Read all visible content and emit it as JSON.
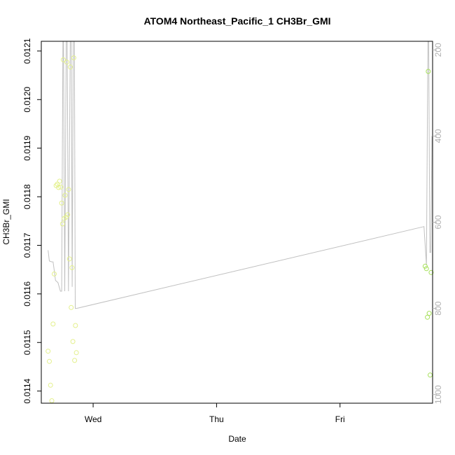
{
  "chart_data": {
    "type": "scatter",
    "title": "ATOM4 Northeast_Pacific_1 CH3Br_GMI",
    "xlabel": "Date",
    "ylabel": "CH3Br_GMI",
    "x_ticks": [
      {
        "day": 1.0,
        "label": "Wed"
      },
      {
        "day": 2.0,
        "label": "Thu"
      },
      {
        "day": 3.0,
        "label": "Fri"
      }
    ],
    "xlim_days": [
      0.58,
      3.75
    ],
    "ylim": [
      0.011375,
      0.01212
    ],
    "y_ticks": [
      0.0114,
      0.0115,
      0.0116,
      0.0117,
      0.0118,
      0.0119,
      0.012,
      0.0121
    ],
    "y2_axis": {
      "label": "",
      "ticks": [
        200,
        400,
        600,
        800,
        1000
      ],
      "range": [
        1020,
        180
      ],
      "color": "#b0b0b0"
    },
    "colors": {
      "point_yellow": "#e3f08c",
      "point_green": "#a6e05a",
      "pressure_line": "#c0c0c0",
      "axis": "#000000"
    },
    "series": [
      {
        "marker": "open-circle",
        "color_key": "point_yellow",
        "points": [
          {
            "day": 0.635,
            "y": 0.011482
          },
          {
            "day": 0.645,
            "y": 0.011461
          },
          {
            "day": 0.655,
            "y": 0.011412
          },
          {
            "day": 0.665,
            "y": 0.01138
          },
          {
            "day": 0.675,
            "y": 0.011538
          },
          {
            "day": 0.685,
            "y": 0.011641
          },
          {
            "day": 0.7,
            "y": 0.011823
          },
          {
            "day": 0.71,
            "y": 0.011826
          },
          {
            "day": 0.72,
            "y": 0.011819
          },
          {
            "day": 0.728,
            "y": 0.011832
          },
          {
            "day": 0.738,
            "y": 0.01182
          },
          {
            "day": 0.745,
            "y": 0.011787
          },
          {
            "day": 0.752,
            "y": 0.011744
          },
          {
            "day": 0.758,
            "y": 0.012082
          },
          {
            "day": 0.765,
            "y": 0.011755
          },
          {
            "day": 0.772,
            "y": 0.011803
          },
          {
            "day": 0.78,
            "y": 0.011758
          },
          {
            "day": 0.787,
            "y": 0.012077
          },
          {
            "day": 0.794,
            "y": 0.011763
          },
          {
            "day": 0.801,
            "y": 0.011815
          },
          {
            "day": 0.808,
            "y": 0.011672
          },
          {
            "day": 0.815,
            "y": 0.012067
          },
          {
            "day": 0.822,
            "y": 0.011572
          },
          {
            "day": 0.829,
            "y": 0.011654
          },
          {
            "day": 0.836,
            "y": 0.011502
          },
          {
            "day": 0.843,
            "y": 0.012086
          },
          {
            "day": 0.85,
            "y": 0.011463
          },
          {
            "day": 0.857,
            "y": 0.011535
          },
          {
            "day": 0.864,
            "y": 0.011479
          }
        ]
      },
      {
        "marker": "open-circle",
        "color_key": "point_green",
        "points": [
          {
            "day": 3.69,
            "y": 0.011657
          },
          {
            "day": 3.7,
            "y": 0.011652
          },
          {
            "day": 3.708,
            "y": 0.011552
          },
          {
            "day": 3.715,
            "y": 0.012058
          },
          {
            "day": 3.722,
            "y": 0.01156
          },
          {
            "day": 3.73,
            "y": 0.011433
          },
          {
            "day": 3.738,
            "y": 0.011644
          }
        ]
      }
    ],
    "pressure_line": {
      "axis": "y2",
      "color_key": "pressure_line",
      "points": [
        {
          "day": 0.635,
          "y2": 665
        },
        {
          "day": 0.645,
          "y2": 690
        },
        {
          "day": 0.665,
          "y2": 692
        },
        {
          "day": 0.675,
          "y2": 692
        },
        {
          "day": 0.685,
          "y2": 712
        },
        {
          "day": 0.695,
          "y2": 735
        },
        {
          "day": 0.715,
          "y2": 740
        },
        {
          "day": 0.735,
          "y2": 760
        },
        {
          "day": 0.745,
          "y2": 760
        },
        {
          "day": 0.755,
          "y2": 180
        },
        {
          "day": 0.76,
          "y2": 180
        },
        {
          "day": 0.77,
          "y2": 760
        },
        {
          "day": 0.782,
          "y2": 180
        },
        {
          "day": 0.79,
          "y2": 180
        },
        {
          "day": 0.8,
          "y2": 760
        },
        {
          "day": 0.815,
          "y2": 180
        },
        {
          "day": 0.823,
          "y2": 180
        },
        {
          "day": 0.83,
          "y2": 750
        },
        {
          "day": 0.84,
          "y2": 180
        },
        {
          "day": 0.848,
          "y2": 180
        },
        {
          "day": 0.855,
          "y2": 800
        },
        {
          "day": 0.865,
          "y2": 800
        },
        {
          "day": 3.68,
          "y2": 610
        },
        {
          "day": 3.7,
          "y2": 700
        },
        {
          "day": 3.712,
          "y2": 180
        },
        {
          "day": 3.718,
          "y2": 180
        },
        {
          "day": 3.728,
          "y2": 670
        },
        {
          "day": 3.735,
          "y2": 670
        },
        {
          "day": 3.745,
          "y2": 400
        }
      ]
    }
  }
}
